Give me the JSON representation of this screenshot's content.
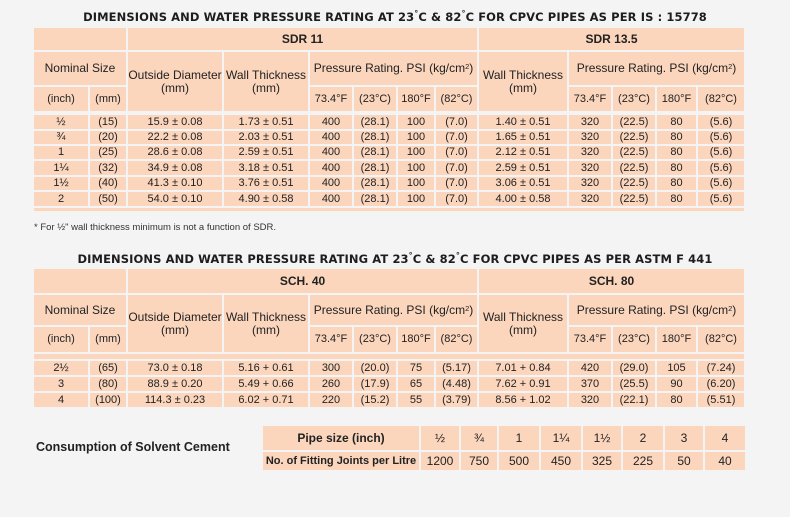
{
  "table1": {
    "title": "DIMENSIONS AND WATER PRESSURE RATING AT 23°C & 82°C FOR CPVC PIPES AS PER IS : 15778",
    "group_left": "SDR 11",
    "group_right": "SDR 13.5",
    "headers": {
      "nominal_size": "Nominal Size",
      "outside_diameter": "Outside Diameter (mm)",
      "wall_thickness": "Wall Thickness (mm)",
      "pressure_rating": "Pressure Rating. PSI (kg/cm²)",
      "inch": "(inch)",
      "mm": "(mm)",
      "t1": "73.4°F",
      "t2": "(23°C)",
      "t3": "180°F",
      "t4": "(82°C)"
    },
    "rows": [
      [
        "½",
        "(15)",
        "15.9 ± 0.08",
        "1.73 ± 0.51",
        "400",
        "(28.1)",
        "100",
        "(7.0)",
        "1.40 ± 0.51",
        "320",
        "(22.5)",
        "80",
        "(5.6)"
      ],
      [
        "¾",
        "(20)",
        "22.2 ± 0.08",
        "2.03 ± 0.51",
        "400",
        "(28.1)",
        "100",
        "(7.0)",
        "1.65 ± 0.51",
        "320",
        "(22.5)",
        "80",
        "(5.6)"
      ],
      [
        "1",
        "(25)",
        "28.6 ± 0.08",
        "2.59 ± 0.51",
        "400",
        "(28.1)",
        "100",
        "(7.0)",
        "2.12 ± 0.51",
        "320",
        "(22.5)",
        "80",
        "(5.6)"
      ],
      [
        "1¼",
        "(32)",
        "34.9 ± 0.08",
        "3.18 ± 0.51",
        "400",
        "(28.1)",
        "100",
        "(7.0)",
        "2.59 ± 0.51",
        "320",
        "(22.5)",
        "80",
        "(5.6)"
      ],
      [
        "1½",
        "(40)",
        "41.3 ± 0.10",
        "3.76 ± 0.51",
        "400",
        "(28.1)",
        "100",
        "(7.0)",
        "3.06 ± 0.51",
        "320",
        "(22.5)",
        "80",
        "(5.6)"
      ],
      [
        "2",
        "(50)",
        "54.0 ± 0.10",
        "4.90 ± 0.58",
        "400",
        "(28.1)",
        "100",
        "(7.0)",
        "4.00 ± 0.58",
        "320",
        "(22.5)",
        "80",
        "(5.6)"
      ]
    ],
    "footnote": "* For ½\" wall thickness minimum is not a function of SDR."
  },
  "table2": {
    "title": "DIMENSIONS AND WATER PRESSURE RATING AT 23°C & 82°C FOR CPVC PIPES AS PER ASTM F 441",
    "group_left": "SCH. 40",
    "group_right": "SCH. 80",
    "headers": {
      "nominal_size": "Nominal Size",
      "outside_diameter": "Outside Diameter (mm)",
      "wall_thickness": "Wall Thickness (mm)",
      "pressure_rating": "Pressure Rating. PSI (kg/cm²)",
      "inch": "(inch)",
      "mm": "(mm)",
      "t1": "73.4°F",
      "t2": "(23°C)",
      "t3": "180°F",
      "t4": "(82°C)"
    },
    "rows": [
      [
        "2½",
        "(65)",
        "73.0 ± 0.18",
        "5.16 + 0.61",
        "300",
        "(20.0)",
        "75",
        "(5.17)",
        "7.01 + 0.84",
        "420",
        "(29.0)",
        "105",
        "(7.24)"
      ],
      [
        "3",
        "(80)",
        "88.9 ± 0.20",
        "5.49 + 0.66",
        "260",
        "(17.9)",
        "65",
        "(4.48)",
        "7.62 + 0.91",
        "370",
        "(25.5)",
        "90",
        "(6.20)"
      ],
      [
        "4",
        "(100)",
        "114.3 ± 0.23",
        "6.02 + 0.71",
        "220",
        "(15.2)",
        "55",
        "(3.79)",
        "8.56 + 1.02",
        "320",
        "(22.1)",
        "80",
        "(5.51)"
      ]
    ]
  },
  "consumption": {
    "title": "Consumption of Solvent Cement",
    "pipe_size_label": "Pipe size (inch)",
    "joints_label": "No. of Fitting Joints per Litre",
    "sizes": [
      "½",
      "¾",
      "1",
      "1¼",
      "1½",
      "2",
      "3",
      "4"
    ],
    "joints": [
      "1200",
      "750",
      "500",
      "450",
      "325",
      "225",
      "50",
      "40"
    ]
  }
}
